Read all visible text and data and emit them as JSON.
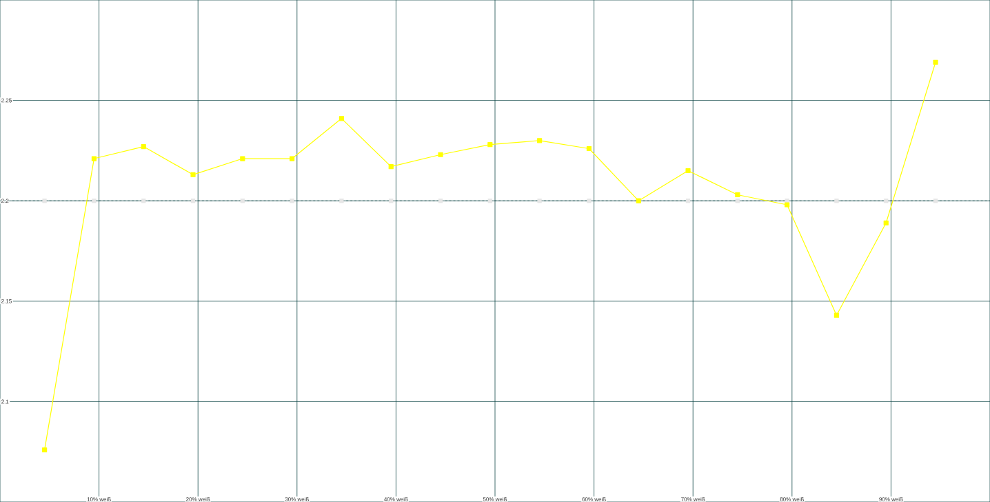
{
  "chart_data": {
    "type": "line",
    "x": [
      4.5,
      9.5,
      14.5,
      19.5,
      24.5,
      29.5,
      34.5,
      39.5,
      44.5,
      49.5,
      54.5,
      59.5,
      64.5,
      69.5,
      74.5,
      79.5,
      84.5,
      89.5,
      94.5
    ],
    "series": [
      {
        "color": "#ffff00",
        "marker": "square",
        "values": [
          2.076,
          2.221,
          2.227,
          2.213,
          2.221,
          2.221,
          2.241,
          2.217,
          2.223,
          2.228,
          2.23,
          2.226,
          2.2,
          2.215,
          2.203,
          2.198,
          2.143,
          2.189,
          2.269
        ]
      },
      {
        "type": "scatter",
        "color": "#e6e6e6",
        "marker": "square",
        "values": [
          2.2,
          2.2,
          2.2,
          2.2,
          2.2,
          2.2,
          2.2,
          2.2,
          2.2,
          2.2,
          2.2,
          2.2,
          null,
          2.2,
          2.2,
          2.2,
          2.2,
          2.2,
          2.2
        ]
      }
    ],
    "ref_lines": [
      {
        "axis": "y",
        "value": 2.2,
        "color": "#003c3c",
        "line_style": "dashed"
      }
    ],
    "xlim": [
      0,
      100
    ],
    "xticks": [
      {
        "value": 10,
        "label": "10% weiß"
      },
      {
        "value": 20,
        "label": "20% weiß"
      },
      {
        "value": 30,
        "label": "30% weiß"
      },
      {
        "value": 40,
        "label": "40% weiß"
      },
      {
        "value": 50,
        "label": "50% weiß"
      },
      {
        "value": 60,
        "label": "60% weiß"
      },
      {
        "value": 70,
        "label": "70% weiß"
      },
      {
        "value": 80,
        "label": "80% weiß"
      },
      {
        "value": 90,
        "label": "90% weiß"
      }
    ],
    "ylim": [
      2.05,
      2.3
    ],
    "yticks": [
      2.1,
      2.15,
      2.2,
      2.25
    ],
    "grid": true
  }
}
